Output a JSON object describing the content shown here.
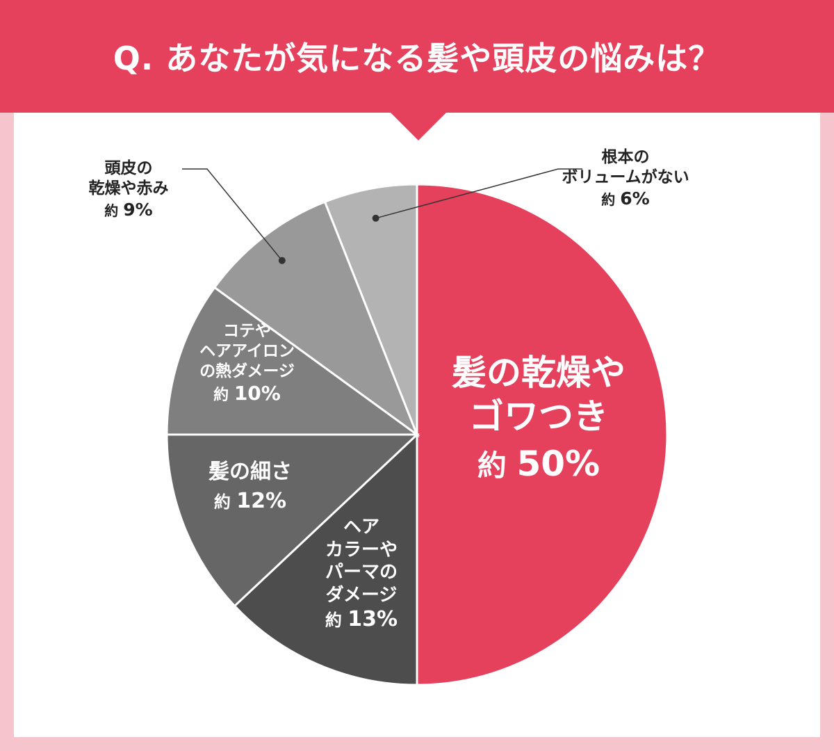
{
  "title": "Q. あなたが気になる髪や頭皮の悩みは？",
  "colors": {
    "header": "#e5405c",
    "background": "#f6c4cd",
    "panel": "#ffffff",
    "accent": "#e5405c"
  },
  "chart_data": {
    "type": "pie",
    "title": "Q. あなたが気になる髪や頭皮の悩みは？",
    "start_angle_deg": 0,
    "direction": "clockwise",
    "slices": [
      {
        "label": "髪の乾燥や\nゴワつき",
        "prefix": "約",
        "value": 50,
        "display": "50%",
        "color": "#e5405c"
      },
      {
        "label": "ヘア\nカラーや\nパーマの\nダメージ",
        "prefix": "約",
        "value": 13,
        "display": "13%",
        "color": "#4d4d4d"
      },
      {
        "label": "髪の細さ",
        "prefix": "約",
        "value": 12,
        "display": "12%",
        "color": "#666666"
      },
      {
        "label": "コテや\nヘアアイロン\nの熱ダメージ",
        "prefix": "約",
        "value": 10,
        "display": "10%",
        "color": "#7f7f7f"
      },
      {
        "label": "頭皮の\n乾燥や赤み",
        "prefix": "約",
        "value": 9,
        "display": "9%",
        "color": "#999999"
      },
      {
        "label": "根本の\nボリュームがない",
        "prefix": "約",
        "value": 6,
        "display": "6%",
        "color": "#b3b3b3"
      }
    ]
  }
}
